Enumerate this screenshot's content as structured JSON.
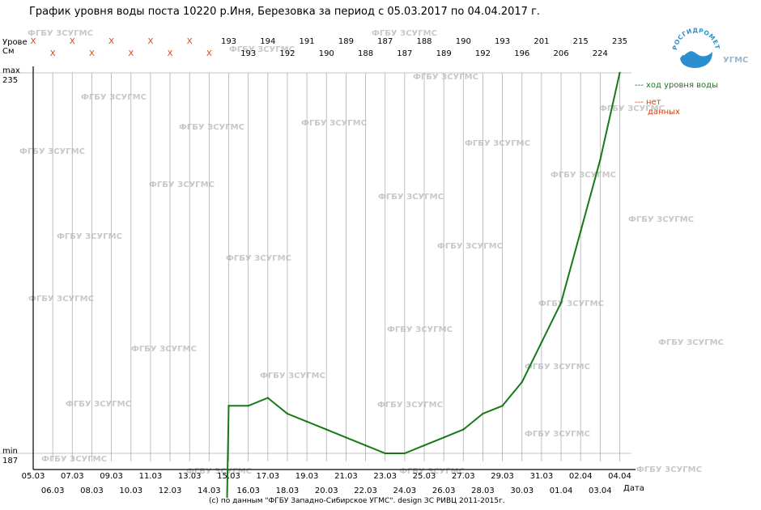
{
  "page": {
    "title": "График уровня воды поста 10220 р.Иня, Березовка за период с 05.03.2017 по 04.04.2017 г.",
    "footer": "(c) по данным \"ФГБУ Западно-Сибирское УГМС\". design ЗС РИВЦ 2011-2015г.",
    "y_axis_label_line1": "Урове",
    "y_axis_label_line2": "Cм",
    "x_axis_label": "Дата",
    "max_label": "max",
    "min_label": "min",
    "max_value": "235",
    "min_value": "187",
    "legend_level": "--- ход уровня воды",
    "legend_nodata_line1": "--- нет",
    "legend_nodata_line2": "данных",
    "logo_arc_text": "РОСГИДРОМЕТ",
    "logo_text": "УГМС",
    "watermark_text": "ФГБУ ЗСУГМС",
    "no_data_marker": "X"
  },
  "colors": {
    "line": "#157a15",
    "no_data": "#cc4411",
    "watermark": "#c8c8c8",
    "grid": "#b0b0b0",
    "axis": "#000000",
    "logo_blue": "#2a8fd0"
  },
  "chart_data": {
    "type": "line",
    "title": "График уровня воды поста 10220 р.Иня, Березовка за период с 05.03.2017 по 04.04.2017 г.",
    "xlabel": "Дата",
    "ylabel": "Урове Cм",
    "ylim": [
      187,
      235
    ],
    "dates": [
      "05.03",
      "06.03",
      "07.03",
      "08.03",
      "09.03",
      "10.03",
      "11.03",
      "12.03",
      "13.03",
      "14.03",
      "15.03",
      "16.03",
      "17.03",
      "18.03",
      "19.03",
      "20.03",
      "21.03",
      "22.03",
      "23.03",
      "24.03",
      "25.03",
      "26.03",
      "27.03",
      "28.03",
      "29.03",
      "30.03",
      "31.03",
      "01.04",
      "02.04",
      "03.04",
      "04.04"
    ],
    "daily_values": [
      null,
      null,
      null,
      null,
      null,
      null,
      null,
      null,
      null,
      null,
      193,
      193,
      194,
      192,
      191,
      190,
      189,
      188,
      187,
      187,
      188,
      189,
      190,
      192,
      193,
      196,
      201,
      206,
      215,
      224,
      235
    ],
    "series": [
      {
        "values": [
          null,
          null,
          null,
          null,
          null,
          null,
          null,
          null,
          null,
          null,
          193,
          193,
          194,
          192,
          191,
          190,
          189,
          188,
          187,
          187,
          188,
          189,
          190,
          192,
          193,
          196,
          201,
          206,
          215,
          224,
          235
        ]
      }
    ],
    "no_data_dates": [
      "05.03",
      "06.03",
      "07.03",
      "08.03",
      "09.03",
      "10.03",
      "11.03",
      "12.03",
      "13.03",
      "14.03"
    ],
    "grid": true,
    "legend_position": "right"
  }
}
